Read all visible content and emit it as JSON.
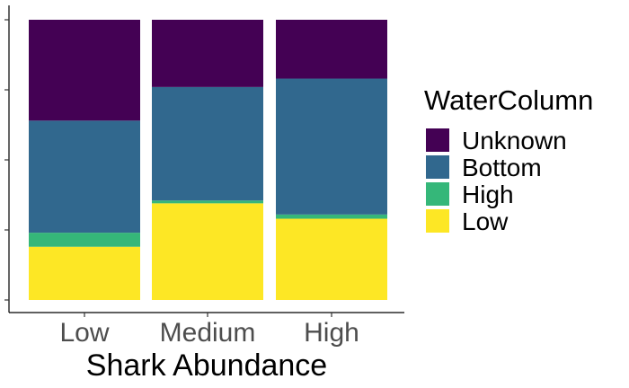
{
  "chart_data": {
    "type": "bar",
    "stacked": true,
    "normalized": true,
    "title": "",
    "xlabel": "Shark Abundance",
    "ylabel": "",
    "ylim": [
      0,
      1
    ],
    "y_ticks": [
      0,
      0.25,
      0.5,
      0.75,
      1.0
    ],
    "y_tick_labels_shown": false,
    "categories": [
      "Low",
      "Medium",
      "High"
    ],
    "series": [
      {
        "name": "Low",
        "color": "#FDE725",
        "values": [
          0.19,
          0.345,
          0.29
        ]
      },
      {
        "name": "High",
        "color": "#35B779",
        "values": [
          0.05,
          0.01,
          0.015
        ]
      },
      {
        "name": "Bottom",
        "color": "#31688E",
        "values": [
          0.4,
          0.405,
          0.485
        ]
      },
      {
        "name": "Unknown",
        "color": "#440154",
        "values": [
          0.36,
          0.24,
          0.21
        ]
      }
    ],
    "legend": {
      "title": "WaterColumn",
      "placement": "right",
      "items": [
        "Unknown",
        "Bottom",
        "High",
        "Low"
      ]
    },
    "grid": false
  }
}
